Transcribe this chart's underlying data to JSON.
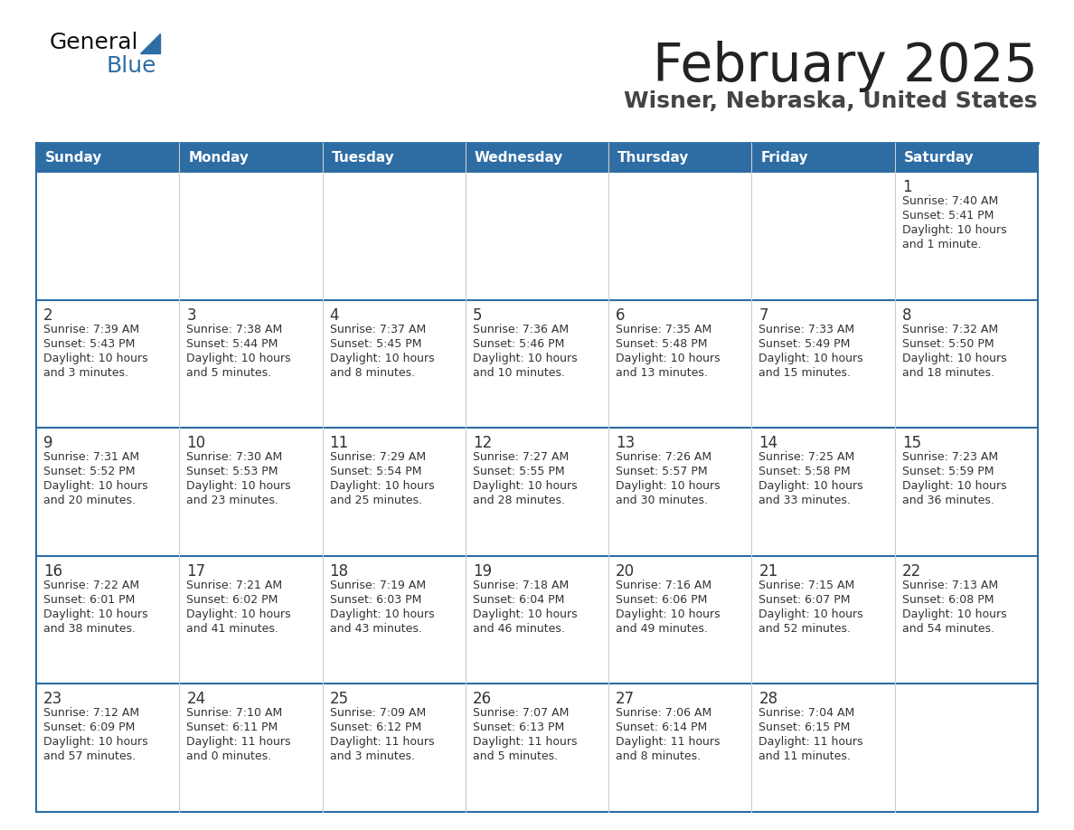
{
  "title": "February 2025",
  "subtitle": "Wisner, Nebraska, United States",
  "header_color": "#2e6da4",
  "header_text_color": "#ffffff",
  "cell_bg_color": "#ffffff",
  "row_bg_even": "#f2f2f2",
  "row_bg_odd": "#ffffff",
  "border_color": "#2e6da4",
  "inner_line_color": "#2e6da4",
  "col_line_color": "#cccccc",
  "days_of_week": [
    "Sunday",
    "Monday",
    "Tuesday",
    "Wednesday",
    "Thursday",
    "Friday",
    "Saturday"
  ],
  "title_color": "#222222",
  "subtitle_color": "#444444",
  "day_number_color": "#333333",
  "info_color": "#333333",
  "logo_general_color": "#111111",
  "logo_blue_color": "#2e6da4",
  "logo_triangle_color": "#2e6da4",
  "calendar": [
    [
      null,
      null,
      null,
      null,
      null,
      null,
      {
        "day": 1,
        "sunrise": "7:40 AM",
        "sunset": "5:41 PM",
        "daylight": "10 hours and 1 minute."
      }
    ],
    [
      {
        "day": 2,
        "sunrise": "7:39 AM",
        "sunset": "5:43 PM",
        "daylight": "10 hours and 3 minutes."
      },
      {
        "day": 3,
        "sunrise": "7:38 AM",
        "sunset": "5:44 PM",
        "daylight": "10 hours and 5 minutes."
      },
      {
        "day": 4,
        "sunrise": "7:37 AM",
        "sunset": "5:45 PM",
        "daylight": "10 hours and 8 minutes."
      },
      {
        "day": 5,
        "sunrise": "7:36 AM",
        "sunset": "5:46 PM",
        "daylight": "10 hours and 10 minutes."
      },
      {
        "day": 6,
        "sunrise": "7:35 AM",
        "sunset": "5:48 PM",
        "daylight": "10 hours and 13 minutes."
      },
      {
        "day": 7,
        "sunrise": "7:33 AM",
        "sunset": "5:49 PM",
        "daylight": "10 hours and 15 minutes."
      },
      {
        "day": 8,
        "sunrise": "7:32 AM",
        "sunset": "5:50 PM",
        "daylight": "10 hours and 18 minutes."
      }
    ],
    [
      {
        "day": 9,
        "sunrise": "7:31 AM",
        "sunset": "5:52 PM",
        "daylight": "10 hours and 20 minutes."
      },
      {
        "day": 10,
        "sunrise": "7:30 AM",
        "sunset": "5:53 PM",
        "daylight": "10 hours and 23 minutes."
      },
      {
        "day": 11,
        "sunrise": "7:29 AM",
        "sunset": "5:54 PM",
        "daylight": "10 hours and 25 minutes."
      },
      {
        "day": 12,
        "sunrise": "7:27 AM",
        "sunset": "5:55 PM",
        "daylight": "10 hours and 28 minutes."
      },
      {
        "day": 13,
        "sunrise": "7:26 AM",
        "sunset": "5:57 PM",
        "daylight": "10 hours and 30 minutes."
      },
      {
        "day": 14,
        "sunrise": "7:25 AM",
        "sunset": "5:58 PM",
        "daylight": "10 hours and 33 minutes."
      },
      {
        "day": 15,
        "sunrise": "7:23 AM",
        "sunset": "5:59 PM",
        "daylight": "10 hours and 36 minutes."
      }
    ],
    [
      {
        "day": 16,
        "sunrise": "7:22 AM",
        "sunset": "6:01 PM",
        "daylight": "10 hours and 38 minutes."
      },
      {
        "day": 17,
        "sunrise": "7:21 AM",
        "sunset": "6:02 PM",
        "daylight": "10 hours and 41 minutes."
      },
      {
        "day": 18,
        "sunrise": "7:19 AM",
        "sunset": "6:03 PM",
        "daylight": "10 hours and 43 minutes."
      },
      {
        "day": 19,
        "sunrise": "7:18 AM",
        "sunset": "6:04 PM",
        "daylight": "10 hours and 46 minutes."
      },
      {
        "day": 20,
        "sunrise": "7:16 AM",
        "sunset": "6:06 PM",
        "daylight": "10 hours and 49 minutes."
      },
      {
        "day": 21,
        "sunrise": "7:15 AM",
        "sunset": "6:07 PM",
        "daylight": "10 hours and 52 minutes."
      },
      {
        "day": 22,
        "sunrise": "7:13 AM",
        "sunset": "6:08 PM",
        "daylight": "10 hours and 54 minutes."
      }
    ],
    [
      {
        "day": 23,
        "sunrise": "7:12 AM",
        "sunset": "6:09 PM",
        "daylight": "10 hours and 57 minutes."
      },
      {
        "day": 24,
        "sunrise": "7:10 AM",
        "sunset": "6:11 PM",
        "daylight": "11 hours and 0 minutes."
      },
      {
        "day": 25,
        "sunrise": "7:09 AM",
        "sunset": "6:12 PM",
        "daylight": "11 hours and 3 minutes."
      },
      {
        "day": 26,
        "sunrise": "7:07 AM",
        "sunset": "6:13 PM",
        "daylight": "11 hours and 5 minutes."
      },
      {
        "day": 27,
        "sunrise": "7:06 AM",
        "sunset": "6:14 PM",
        "daylight": "11 hours and 8 minutes."
      },
      {
        "day": 28,
        "sunrise": "7:04 AM",
        "sunset": "6:15 PM",
        "daylight": "11 hours and 11 minutes."
      },
      null
    ]
  ]
}
